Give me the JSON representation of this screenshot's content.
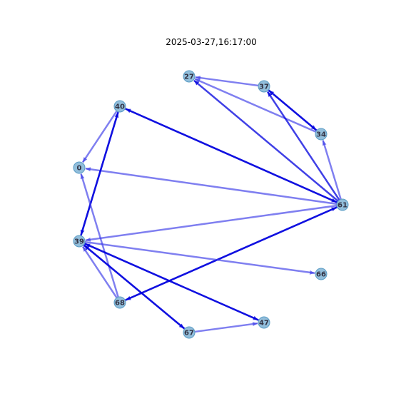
{
  "title": "2025-03-27,16:17:00",
  "colors": {
    "node_fill": "#7fb3d5",
    "node_stroke": "#5a9cc5",
    "edge_dark": "#0000dd",
    "edge_light": "#3b3be8"
  },
  "nodes": [
    {
      "id": "27"
    },
    {
      "id": "37"
    },
    {
      "id": "34"
    },
    {
      "id": "61"
    },
    {
      "id": "66"
    },
    {
      "id": "47"
    },
    {
      "id": "67"
    },
    {
      "id": "68"
    },
    {
      "id": "39"
    },
    {
      "id": "0"
    },
    {
      "id": "40"
    }
  ],
  "edges": [
    {
      "source": "37",
      "target": "27",
      "strength": "light"
    },
    {
      "source": "34",
      "target": "27",
      "strength": "light"
    },
    {
      "source": "37",
      "target": "34",
      "strength": "dark"
    },
    {
      "source": "34",
      "target": "37",
      "strength": "dark"
    },
    {
      "source": "61",
      "target": "37",
      "strength": "dark"
    },
    {
      "source": "61",
      "target": "27",
      "strength": "dark"
    },
    {
      "source": "61",
      "target": "34",
      "strength": "light"
    },
    {
      "source": "61",
      "target": "40",
      "strength": "dark"
    },
    {
      "source": "40",
      "target": "61",
      "strength": "dark"
    },
    {
      "source": "61",
      "target": "0",
      "strength": "light"
    },
    {
      "source": "61",
      "target": "39",
      "strength": "light"
    },
    {
      "source": "68",
      "target": "61",
      "strength": "dark"
    },
    {
      "source": "61",
      "target": "68",
      "strength": "dark"
    },
    {
      "source": "40",
      "target": "0",
      "strength": "light"
    },
    {
      "source": "40",
      "target": "39",
      "strength": "dark"
    },
    {
      "source": "39",
      "target": "40",
      "strength": "dark"
    },
    {
      "source": "68",
      "target": "0",
      "strength": "light"
    },
    {
      "source": "68",
      "target": "39",
      "strength": "light"
    },
    {
      "source": "39",
      "target": "66",
      "strength": "light"
    },
    {
      "source": "39",
      "target": "47",
      "strength": "dark"
    },
    {
      "source": "47",
      "target": "39",
      "strength": "dark"
    },
    {
      "source": "39",
      "target": "67",
      "strength": "dark"
    },
    {
      "source": "67",
      "target": "39",
      "strength": "dark"
    },
    {
      "source": "67",
      "target": "47",
      "strength": "light"
    }
  ]
}
